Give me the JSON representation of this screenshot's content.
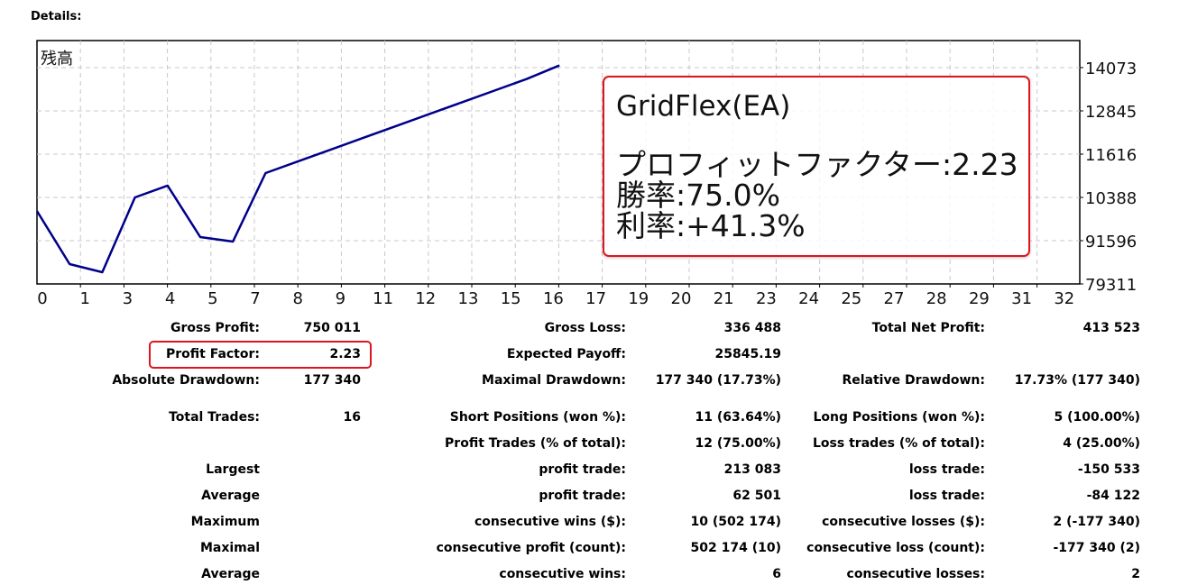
{
  "header": {
    "details_label": "Details:"
  },
  "chart_data": {
    "type": "line",
    "title": "残高",
    "x_tick_labels": [
      "0",
      "1",
      "3",
      "4",
      "5",
      "7",
      "8",
      "9",
      "11",
      "12",
      "13",
      "15",
      "16",
      "17",
      "19",
      "20",
      "21",
      "23",
      "24",
      "25",
      "27",
      "28",
      "29",
      "31",
      "32"
    ],
    "y_tick_labels": [
      "14073",
      "12845",
      "11616",
      "10388",
      "91596",
      "79311"
    ],
    "ylim": [
      793110,
      1407300
    ],
    "x": [
      0,
      1,
      2,
      3,
      4,
      5,
      6,
      7,
      8,
      9,
      10,
      11,
      12,
      13,
      14,
      15,
      16
    ],
    "values": [
      1000000,
      849400,
      826400,
      1038800,
      1072100,
      926200,
      913400,
      1107900,
      1141300,
      1174700,
      1208100,
      1241500,
      1274900,
      1308300,
      1341700,
      1375100,
      1413523
    ],
    "grid": true,
    "line_color": "#00008b"
  },
  "callout": {
    "title": "GridFlex(EA)",
    "lines": [
      "プロフィットファクター:2.23",
      "勝率:75.0%",
      "利率:+41.3%"
    ],
    "border_color": "#e0141e"
  },
  "stats": [
    [
      "",
      "Gross Profit:",
      "750 011",
      "Gross Loss:",
      "336 488",
      "Total Net Profit:",
      "413 523"
    ],
    [
      "",
      "Profit Factor:",
      "2.23",
      "Expected Payoff:",
      "25845.19",
      "",
      ""
    ],
    [
      "",
      "Absolute Drawdown:",
      "177 340",
      "Maximal Drawdown:",
      "177 340 (17.73%)",
      "Relative Drawdown:",
      "17.73% (177 340)"
    ],
    [
      "",
      "Total Trades:",
      "16",
      "Short Positions (won %):",
      "11 (63.64%)",
      "Long Positions (won %):",
      "5 (100.00%)"
    ],
    [
      "",
      "",
      "",
      "Profit Trades (% of total):",
      "12 (75.00%)",
      "Loss trades (% of total):",
      "4 (25.00%)"
    ],
    [
      "",
      "Largest",
      "",
      "profit trade:",
      "213 083",
      "loss trade:",
      "-150 533"
    ],
    [
      "",
      "Average",
      "",
      "profit trade:",
      "62 501",
      "loss trade:",
      "-84 122"
    ],
    [
      "",
      "Maximum",
      "",
      "consecutive wins ($):",
      "10 (502 174)",
      "consecutive losses ($):",
      "2 (-177 340)"
    ],
    [
      "",
      "Maximal",
      "",
      "consecutive profit (count):",
      "502 174 (10)",
      "consecutive loss (count):",
      "-177 340 (2)"
    ],
    [
      "",
      "Average",
      "",
      "consecutive wins:",
      "6",
      "consecutive losses:",
      "2"
    ]
  ]
}
